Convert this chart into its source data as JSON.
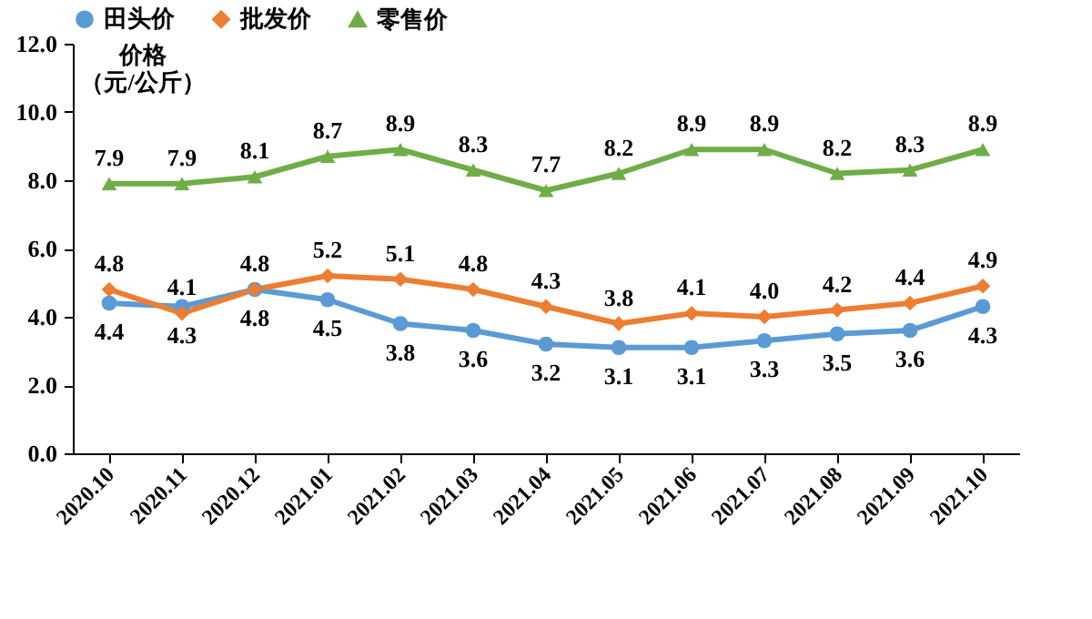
{
  "chart_data": {
    "type": "line",
    "ylabel": "价格（元/公斤）",
    "categories": [
      "2020.10",
      "2020.11",
      "2020.12",
      "2021.01",
      "2021.02",
      "2021.03",
      "2021.04",
      "2021.05",
      "2021.06",
      "2021.07",
      "2021.08",
      "2021.09",
      "2021.10"
    ],
    "series": [
      {
        "name": "田头价",
        "color": "#5b9bd5",
        "marker": "circle",
        "values": [
          4.4,
          4.3,
          4.8,
          4.5,
          3.8,
          3.6,
          3.2,
          3.1,
          3.1,
          3.3,
          3.5,
          3.6,
          4.3
        ],
        "value_labels": [
          "4.4",
          "4.3",
          "4.8",
          "4.5",
          "3.8",
          "3.6",
          "3.2",
          "3.1",
          "3.1",
          "3.3",
          "3.5",
          "3.6",
          "4.3"
        ]
      },
      {
        "name": "批发价",
        "color": "#ed7d31",
        "marker": "diamond",
        "values": [
          4.8,
          4.1,
          4.8,
          5.2,
          5.1,
          4.8,
          4.3,
          3.8,
          4.1,
          4.0,
          4.2,
          4.4,
          4.9
        ],
        "value_labels": [
          "4.8",
          "4.1",
          "4.8",
          "5.2",
          "5.1",
          "4.8",
          "4.3",
          "3.8",
          "4.1",
          "4.0",
          "4.2",
          "4.4",
          "4.9"
        ]
      },
      {
        "name": "零售价",
        "color": "#70ad47",
        "marker": "triangle",
        "values": [
          7.9,
          7.9,
          8.1,
          8.7,
          8.9,
          8.3,
          7.7,
          8.2,
          8.9,
          8.9,
          8.2,
          8.3,
          8.9
        ],
        "value_labels": [
          "7.9",
          "7.9",
          "8.1",
          "8.7",
          "8.9",
          "8.3",
          "7.7",
          "8.2",
          "8.9",
          "8.9",
          "8.2",
          "8.3",
          "8.9"
        ]
      }
    ],
    "ylim": [
      0,
      12
    ],
    "yticks": [
      {
        "value": 0,
        "label": "0.0"
      },
      {
        "value": 2,
        "label": "2.0"
      },
      {
        "value": 4,
        "label": "4.0"
      },
      {
        "value": 6,
        "label": "6.0"
      },
      {
        "value": 8,
        "label": "8.0"
      },
      {
        "value": 10,
        "label": "10.0"
      },
      {
        "value": 12,
        "label": "12.0"
      }
    ],
    "grid": false,
    "legend": "top",
    "line_style": "solid"
  }
}
